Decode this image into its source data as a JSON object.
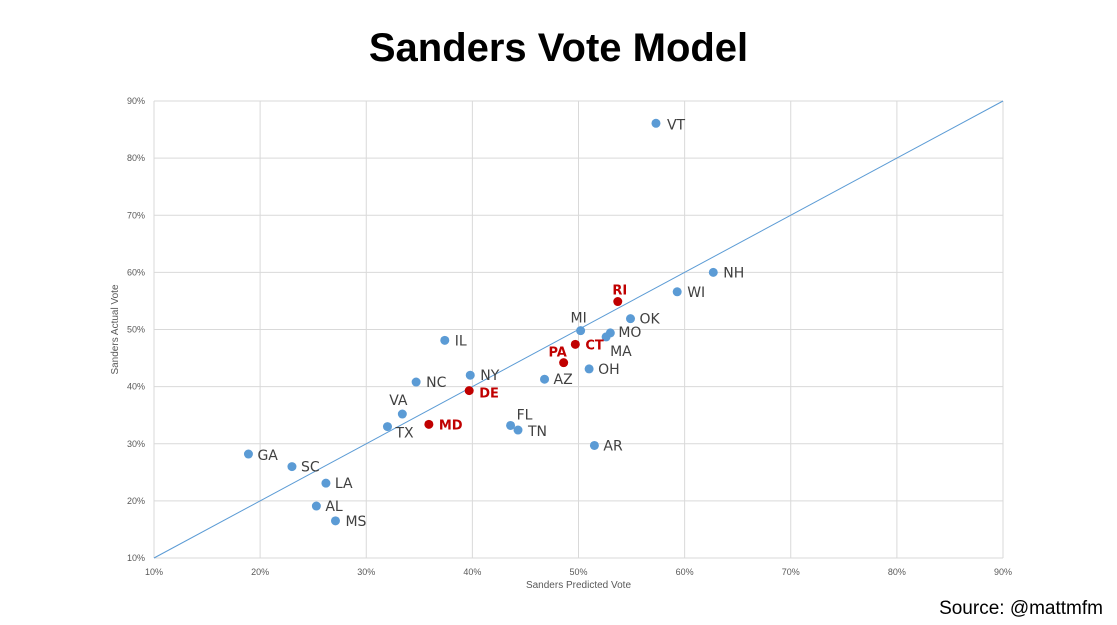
{
  "title": "Sanders Vote Model",
  "source": "Source: @mattmfm",
  "colors": {
    "point": "#5b9bd5",
    "highlight": "#c00000",
    "line": "#5b9bd5",
    "grid": "#d9d9d9"
  },
  "chart_data": {
    "type": "scatter",
    "title": "Sanders Vote Model",
    "xlabel": "Sanders Predicted Vote",
    "ylabel": "Sanders Actual Vote",
    "xlim": [
      0.1,
      0.9
    ],
    "ylim": [
      0.1,
      0.9
    ],
    "xticks": [
      "10%",
      "20%",
      "30%",
      "40%",
      "50%",
      "60%",
      "70%",
      "80%",
      "90%"
    ],
    "yticks": [
      "10%",
      "20%",
      "30%",
      "40%",
      "50%",
      "60%",
      "70%",
      "80%",
      "90%"
    ],
    "grid": true,
    "reference_line": {
      "from": [
        0.1,
        0.1
      ],
      "to": [
        0.9,
        0.9
      ]
    },
    "points": [
      {
        "label": "VT",
        "x": 0.573,
        "y": 0.861,
        "highlight": false
      },
      {
        "label": "NH",
        "x": 0.627,
        "y": 0.6,
        "highlight": false
      },
      {
        "label": "WI",
        "x": 0.593,
        "y": 0.566,
        "highlight": false
      },
      {
        "label": "RI",
        "x": 0.537,
        "y": 0.549,
        "highlight": true
      },
      {
        "label": "OK",
        "x": 0.549,
        "y": 0.519,
        "highlight": false
      },
      {
        "label": "MI",
        "x": 0.502,
        "y": 0.498,
        "highlight": false
      },
      {
        "label": "MO",
        "x": 0.53,
        "y": 0.494,
        "highlight": false
      },
      {
        "label": "MA",
        "x": 0.526,
        "y": 0.487,
        "highlight": false
      },
      {
        "label": "CT",
        "x": 0.497,
        "y": 0.474,
        "highlight": true
      },
      {
        "label": "IL",
        "x": 0.374,
        "y": 0.481,
        "highlight": false
      },
      {
        "label": "PA",
        "x": 0.486,
        "y": 0.442,
        "highlight": true
      },
      {
        "label": "OH",
        "x": 0.51,
        "y": 0.431,
        "highlight": false
      },
      {
        "label": "NY",
        "x": 0.398,
        "y": 0.42,
        "highlight": false
      },
      {
        "label": "AZ",
        "x": 0.468,
        "y": 0.413,
        "highlight": false
      },
      {
        "label": "NC",
        "x": 0.347,
        "y": 0.408,
        "highlight": false
      },
      {
        "label": "DE",
        "x": 0.397,
        "y": 0.393,
        "highlight": true
      },
      {
        "label": "VA",
        "x": 0.334,
        "y": 0.352,
        "highlight": false
      },
      {
        "label": "MD",
        "x": 0.359,
        "y": 0.334,
        "highlight": true
      },
      {
        "label": "FL",
        "x": 0.436,
        "y": 0.332,
        "highlight": false
      },
      {
        "label": "TX",
        "x": 0.32,
        "y": 0.33,
        "highlight": false
      },
      {
        "label": "TN",
        "x": 0.443,
        "y": 0.324,
        "highlight": false
      },
      {
        "label": "AR",
        "x": 0.515,
        "y": 0.297,
        "highlight": false
      },
      {
        "label": "GA",
        "x": 0.189,
        "y": 0.282,
        "highlight": false
      },
      {
        "label": "SC",
        "x": 0.23,
        "y": 0.26,
        "highlight": false
      },
      {
        "label": "LA",
        "x": 0.262,
        "y": 0.231,
        "highlight": false
      },
      {
        "label": "AL",
        "x": 0.253,
        "y": 0.191,
        "highlight": false
      },
      {
        "label": "MS",
        "x": 0.271,
        "y": 0.165,
        "highlight": false
      }
    ]
  }
}
